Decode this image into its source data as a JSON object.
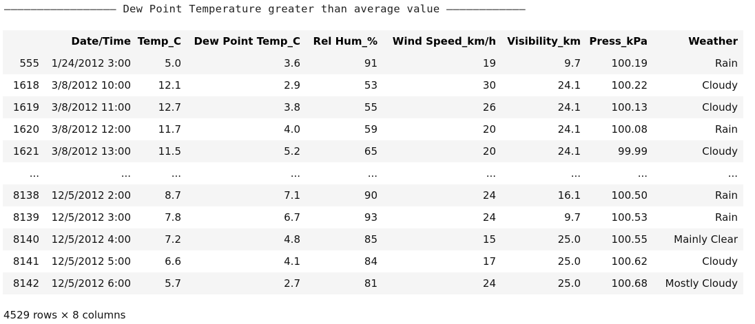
{
  "heading": "————————————————— Dew Point Temperature greater than average value ————————————",
  "table": {
    "columns": [
      "",
      "Date/Time",
      "Temp_C",
      "Dew Point Temp_C",
      "Rel Hum_%",
      "Wind Speed_km/h",
      "Visibility_km",
      "Press_kPa",
      "Weather"
    ],
    "rows": [
      [
        "555",
        "1/24/2012 3:00",
        "5.0",
        "3.6",
        "91",
        "19",
        "9.7",
        "100.19",
        "Rain"
      ],
      [
        "1618",
        "3/8/2012 10:00",
        "12.1",
        "2.9",
        "53",
        "30",
        "24.1",
        "100.22",
        "Cloudy"
      ],
      [
        "1619",
        "3/8/2012 11:00",
        "12.7",
        "3.8",
        "55",
        "26",
        "24.1",
        "100.13",
        "Cloudy"
      ],
      [
        "1620",
        "3/8/2012 12:00",
        "11.7",
        "4.0",
        "59",
        "20",
        "24.1",
        "100.08",
        "Rain"
      ],
      [
        "1621",
        "3/8/2012 13:00",
        "11.5",
        "5.2",
        "65",
        "20",
        "24.1",
        "99.99",
        "Cloudy"
      ],
      [
        "...",
        "...",
        "...",
        "...",
        "...",
        "...",
        "...",
        "...",
        "..."
      ],
      [
        "8138",
        "12/5/2012 2:00",
        "8.7",
        "7.1",
        "90",
        "24",
        "16.1",
        "100.50",
        "Rain"
      ],
      [
        "8139",
        "12/5/2012 3:00",
        "7.8",
        "6.7",
        "93",
        "24",
        "9.7",
        "100.53",
        "Rain"
      ],
      [
        "8140",
        "12/5/2012 4:00",
        "7.2",
        "4.8",
        "85",
        "15",
        "25.0",
        "100.55",
        "Mainly Clear"
      ],
      [
        "8141",
        "12/5/2012 5:00",
        "6.6",
        "4.1",
        "84",
        "17",
        "25.0",
        "100.62",
        "Cloudy"
      ],
      [
        "8142",
        "12/5/2012 6:00",
        "5.7",
        "2.7",
        "81",
        "24",
        "25.0",
        "100.68",
        "Mostly Cloudy"
      ]
    ]
  },
  "footer": "4529 rows × 8 columns"
}
